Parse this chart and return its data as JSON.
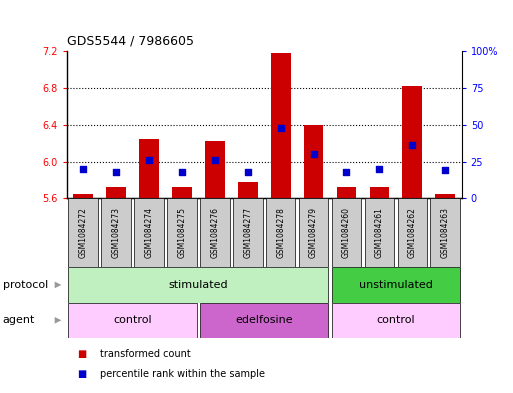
{
  "title": "GDS5544 / 7986605",
  "samples": [
    "GSM1084272",
    "GSM1084273",
    "GSM1084274",
    "GSM1084275",
    "GSM1084276",
    "GSM1084277",
    "GSM1084278",
    "GSM1084279",
    "GSM1084260",
    "GSM1084261",
    "GSM1084262",
    "GSM1084263"
  ],
  "bar_values": [
    5.65,
    5.72,
    6.25,
    5.72,
    6.22,
    5.78,
    7.18,
    6.4,
    5.72,
    5.72,
    6.82,
    5.65
  ],
  "bar_base": 5.6,
  "percentile_values": [
    20,
    18,
    26,
    18,
    26,
    18,
    48,
    30,
    18,
    20,
    36,
    19
  ],
  "ylim_left": [
    5.6,
    7.2
  ],
  "ylim_right": [
    0,
    100
  ],
  "yticks_left": [
    5.6,
    6.0,
    6.4,
    6.8,
    7.2
  ],
  "yticks_right": [
    0,
    25,
    50,
    75,
    100
  ],
  "ytick_labels_right": [
    "0",
    "25",
    "50",
    "75",
    "100%"
  ],
  "bar_color": "#cc0000",
  "percentile_color": "#0000cc",
  "grid_dotted_at": [
    6.0,
    6.4,
    6.8
  ],
  "protocol_groups": [
    {
      "label": "stimulated",
      "start": 0,
      "end": 7,
      "color": "#c0f0c0"
    },
    {
      "label": "unstimulated",
      "start": 8,
      "end": 11,
      "color": "#44cc44"
    }
  ],
  "agent_groups": [
    {
      "label": "control",
      "start": 0,
      "end": 3,
      "color": "#ffccff"
    },
    {
      "label": "edelfosine",
      "start": 4,
      "end": 7,
      "color": "#cc66cc"
    },
    {
      "label": "control",
      "start": 8,
      "end": 11,
      "color": "#ffccff"
    }
  ],
  "sample_box_color": "#cccccc",
  "legend_items": [
    {
      "label": "transformed count",
      "color": "#cc0000"
    },
    {
      "label": "percentile rank within the sample",
      "color": "#0000cc"
    }
  ],
  "protocol_label": "protocol",
  "agent_label": "agent",
  "arrow_color": "#999999"
}
